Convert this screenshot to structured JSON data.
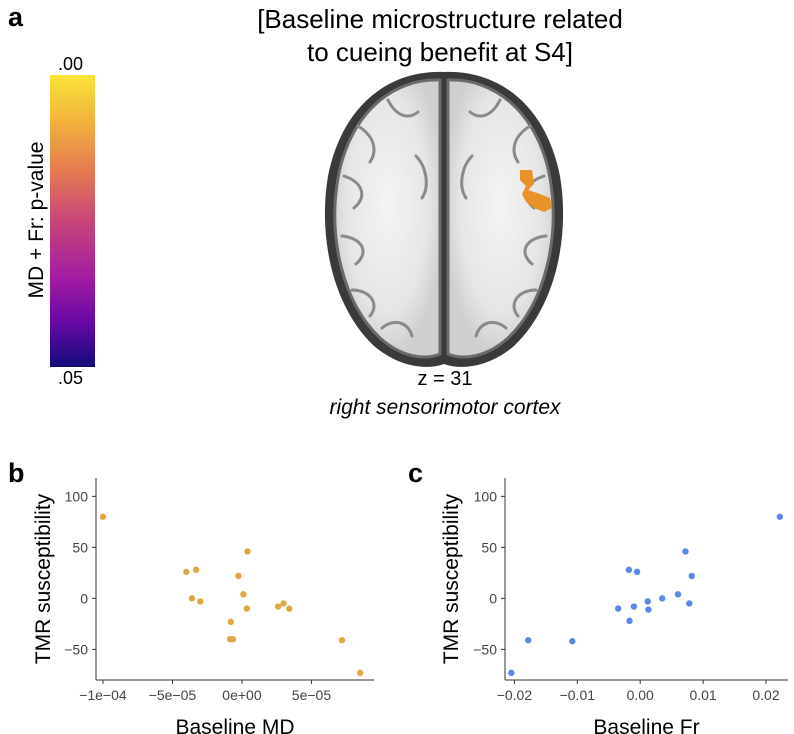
{
  "panel_a": {
    "letter": "a",
    "title_line1": "[Baseline microstructure related",
    "title_line2": "to cueing benefit at S4]",
    "colorbar": {
      "top_label": ".00",
      "bottom_label": ".05",
      "axis_label": "MD + Fr: p-value",
      "colormap": [
        "#f9e538",
        "#f2b23c",
        "#e47a52",
        "#c8467a",
        "#a11ba2",
        "#6a0aa5",
        "#120a7a"
      ]
    },
    "slice_label": "z = 31",
    "region_label": "right sensorimotor cortex",
    "cluster_color": "#e8932a"
  },
  "chart_data": [
    {
      "type": "scatter",
      "panel": "b",
      "color": "#e0a845",
      "xlabel": "Baseline MD",
      "ylabel": "TMR susceptibility",
      "xlim": [
        -0.000105,
        9.5e-05
      ],
      "ylim": [
        -80,
        118
      ],
      "xticks": [
        -0.0001,
        -5e-05,
        0,
        5e-05
      ],
      "xtick_labels": [
        "−1e−04",
        "−5e−05",
        "0e+00",
        "5e−05"
      ],
      "yticks": [
        -50,
        0,
        50,
        100
      ],
      "ytick_labels": [
        "−50",
        "0",
        "50",
        "100"
      ],
      "x": [
        -0.0001,
        -4e-05,
        -3.3e-05,
        -3.6e-05,
        -3e-05,
        -8e-06,
        -8.5e-06,
        -6.5e-06,
        -2.5e-06,
        1e-06,
        3.5e-06,
        4e-06,
        2.6e-05,
        3e-05,
        3.4e-05,
        7.2e-05,
        8.5e-05
      ],
      "y": [
        80,
        26,
        28,
        0,
        -3,
        -23,
        -40,
        -40,
        22,
        4,
        -10,
        46,
        -8,
        -5,
        -10,
        -41,
        -73
      ]
    },
    {
      "type": "scatter",
      "panel": "c",
      "color": "#5b87e6",
      "xlabel": "Baseline Fr",
      "ylabel": "TMR susceptibility",
      "xlim": [
        -0.0215,
        0.0235
      ],
      "ylim": [
        -80,
        118
      ],
      "xticks": [
        -0.02,
        -0.01,
        0.0,
        0.01,
        0.02
      ],
      "xtick_labels": [
        "−0.02",
        "−0.01",
        "0.00",
        "0.01",
        "0.02"
      ],
      "yticks": [
        -50,
        0,
        50,
        100
      ],
      "ytick_labels": [
        "−50",
        "0",
        "50",
        "100"
      ],
      "x": [
        -0.0205,
        -0.0178,
        -0.0108,
        -0.0035,
        -0.0018,
        -0.0017,
        -0.001,
        -0.0005,
        0.0012,
        0.0013,
        0.0035,
        0.006,
        0.0072,
        0.0078,
        0.0082,
        0.0222
      ],
      "y": [
        -73,
        -41,
        -42,
        -10,
        28,
        -22,
        -8,
        26,
        -3,
        -11,
        0,
        4,
        46,
        -5,
        22,
        80
      ]
    }
  ],
  "panel_b": {
    "letter": "b"
  },
  "panel_c": {
    "letter": "c"
  }
}
